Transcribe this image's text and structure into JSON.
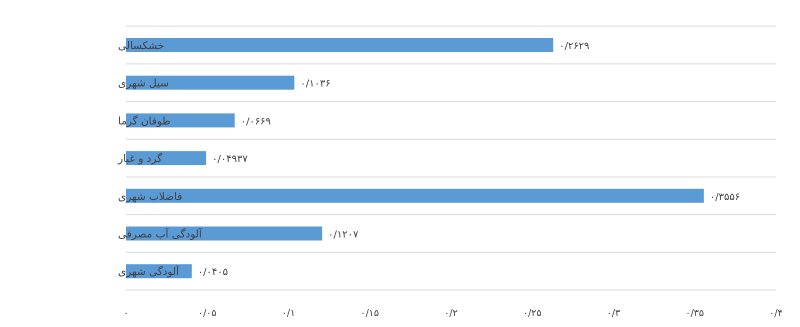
{
  "chart_data": {
    "type": "bar",
    "orientation": "horizontal",
    "categories": [
      "خشکسالی",
      "سیل شهری",
      "طوفان گرما",
      "گرد و غبار",
      "فاضلاب شهری",
      "آلودگی آب مصرفی",
      "آلودگی شهری"
    ],
    "values": [
      0.2629,
      0.1036,
      0.0669,
      0.0493,
      0.3556,
      0.1207,
      0.0405
    ],
    "value_labels": [
      "۰/۲۶۲۹",
      "۰/۱۰۳۶",
      "۰/۰۶۶۹",
      "۰/۰۴۹۳۷",
      "۰/۳۵۵۶",
      "۰/۱۲۰۷",
      "۰/۰۴۰۵"
    ],
    "tick_values": [
      0,
      0.05,
      0.1,
      0.15,
      0.2,
      0.25,
      0.3,
      0.35,
      0.4
    ],
    "tick_labels": [
      "۰",
      "۰/۰۵",
      "۰/۱",
      "۰/۱۵",
      "۰/۲",
      "۰/۲۵",
      "۰/۳",
      "۰/۳۵",
      "۰/۴"
    ],
    "xlim": [
      0,
      0.4
    ],
    "grid": true,
    "bar_color": "#5b9bd5"
  }
}
